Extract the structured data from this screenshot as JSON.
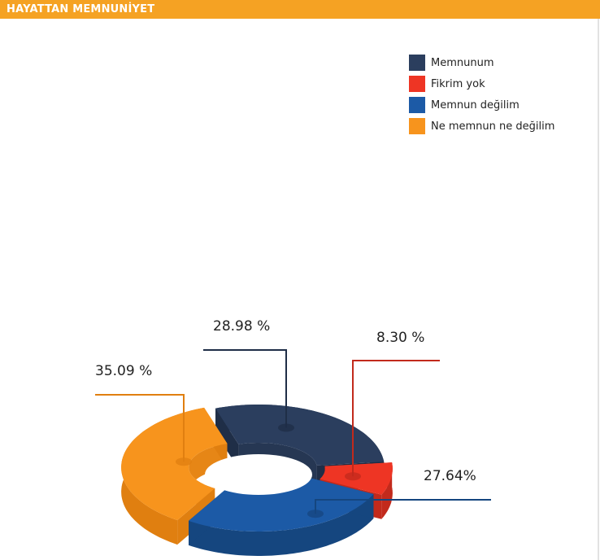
{
  "header": {
    "title": "HAYATTAN MEMNUNİYET"
  },
  "colors": {
    "accent": "#f5a223"
  },
  "chart_data": {
    "type": "pie",
    "style": "3d-donut",
    "title": "HAYATTAN MEMNUNİYET",
    "legend_position": "top-right",
    "series": [
      {
        "name": "Memnunum",
        "value": 28.98,
        "label": "28.98  %",
        "color": "#2b3e5e",
        "side": "#1f2e47",
        "inner": "#263753"
      },
      {
        "name": "Fikrim yok",
        "value": 8.3,
        "label": "8.30  %",
        "color": "#ee3524",
        "side": "#c22a1c",
        "inner": "#d42f21"
      },
      {
        "name": "Memnun değilim",
        "value": 27.64,
        "label": "27.64%",
        "color": "#1c5aa6",
        "side": "#15467f",
        "inner": "#184f92"
      },
      {
        "name": "Ne memnun ne değilim",
        "value": 35.09,
        "label": "35.09  %",
        "color": "#f7941d",
        "side": "#e07f10",
        "inner": "#e68616"
      }
    ]
  }
}
